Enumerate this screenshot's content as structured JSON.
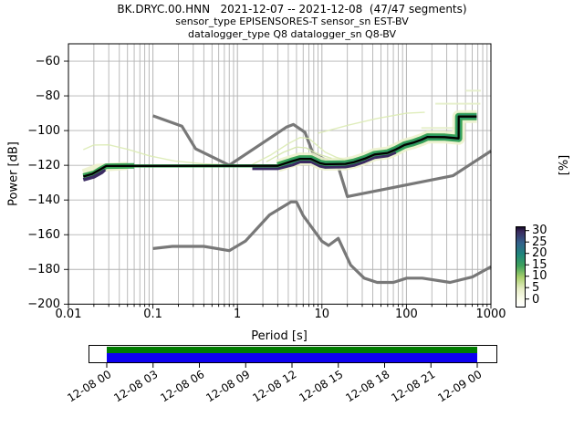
{
  "title": {
    "line1": "BK.DRYC.00.HNN   2021-12-07 -- 2021-12-08  (47/47 segments)",
    "line2": "sensor_type EPISENSORES-T sensor_sn EST-BV",
    "line3": "datalogger_type Q8 datalogger_sn Q8-BV"
  },
  "axes": {
    "xlabel": "Period [s]",
    "ylabel": "Power [dB]",
    "x_tick_labels": [
      "0.01",
      "0.1",
      "1",
      "10",
      "100",
      "1000"
    ],
    "y_tick_labels": [
      "−60",
      "−80",
      "−100",
      "−120",
      "−140",
      "−160",
      "−180",
      "−200"
    ]
  },
  "colorbar": {
    "label": "[%]",
    "tick_labels": [
      "30",
      "25",
      "20",
      "15",
      "10",
      "5",
      "0"
    ],
    "tick_values": [
      30,
      25,
      20,
      15,
      10,
      5,
      0
    ],
    "low_color": "#ffffff",
    "high_color": "#3b2a5e"
  },
  "timebar": {
    "coverage_color": "#007c00",
    "extent_color": "#0d00f0",
    "tick_labels": [
      "12-08 00",
      "12-08 03",
      "12-08 06",
      "12-08 09",
      "12-08 12",
      "12-08 15",
      "12-08 18",
      "12-08 21",
      "12-09 00"
    ]
  },
  "chart_data": {
    "type": "heatmap",
    "title": "BK.DRYC.00.HNN 2021-12-07 -- 2021-12-08 (47/47 segments)",
    "xlabel": "Period [s]",
    "ylabel": "Power [dB]",
    "xscale": "log",
    "xlim": [
      0.01,
      1000
    ],
    "ylim": [
      -200,
      -50
    ],
    "grid": true,
    "colorbar_label": "[%]",
    "colorbar_range": [
      0,
      30
    ],
    "series": [
      {
        "name": "noise-model-low-nlnm",
        "color": "#787878",
        "width": 3.2,
        "opacity": 1,
        "points": [
          [
            0.1,
            -168
          ],
          [
            0.17,
            -166.7
          ],
          [
            0.4,
            -166.7
          ],
          [
            0.8,
            -169.2
          ],
          [
            1.24,
            -163.7
          ],
          [
            2.4,
            -148.6
          ],
          [
            4.3,
            -141.1
          ],
          [
            5,
            -141.1
          ],
          [
            6,
            -149
          ],
          [
            10,
            -163.8
          ],
          [
            12,
            -166.2
          ],
          [
            15.6,
            -162.1
          ],
          [
            21.9,
            -177.5
          ],
          [
            31.6,
            -185
          ],
          [
            45,
            -187.5
          ],
          [
            70,
            -187.5
          ],
          [
            101,
            -185
          ],
          [
            154,
            -185
          ],
          [
            328,
            -187.5
          ],
          [
            600,
            -184.4
          ],
          [
            1000,
            -178.5
          ]
        ]
      },
      {
        "name": "noise-model-high-nhnm",
        "color": "#787878",
        "width": 3.2,
        "opacity": 1,
        "points": [
          [
            0.1,
            -91.5
          ],
          [
            0.22,
            -97.4
          ],
          [
            0.32,
            -110.5
          ],
          [
            0.8,
            -120
          ],
          [
            3.8,
            -98
          ],
          [
            4.6,
            -96.5
          ],
          [
            6.3,
            -101
          ],
          [
            7.9,
            -113.5
          ],
          [
            15.4,
            -120
          ],
          [
            20,
            -138
          ],
          [
            354.8,
            -126
          ],
          [
            1000,
            -111.8
          ]
        ]
      },
      {
        "name": "psd-band-light-start",
        "color": "#edf2cd",
        "width": 9,
        "opacity": 0.9,
        "points": [
          [
            0.015,
            -124.5
          ],
          [
            0.022,
            -121.5
          ],
          [
            0.05,
            -120.3
          ]
        ]
      },
      {
        "name": "psd-band-light",
        "color": "#edf2cd",
        "width": 14,
        "opacity": 0.9,
        "points": [
          [
            3,
            -120.3
          ],
          [
            4.3,
            -117.8
          ],
          [
            5.5,
            -116.3
          ],
          [
            7.4,
            -116.3
          ],
          [
            9.5,
            -118.8
          ],
          [
            11,
            -119.4
          ],
          [
            19,
            -119.2
          ],
          [
            24,
            -118.2
          ],
          [
            32,
            -116.2
          ],
          [
            42,
            -113.8
          ],
          [
            60,
            -112.9
          ],
          [
            75,
            -110.9
          ],
          [
            95,
            -108.3
          ],
          [
            120,
            -107
          ],
          [
            150,
            -105.3
          ],
          [
            178,
            -103.7
          ],
          [
            285,
            -103.8
          ],
          [
            415,
            -104.5
          ],
          [
            416,
            -91.9
          ],
          [
            680,
            -91.9
          ]
        ]
      },
      {
        "name": "psd-trace-short-period",
        "color": "#dcebb4",
        "width": 1.4,
        "opacity": 0.9,
        "points": [
          [
            0.015,
            -111
          ],
          [
            0.02,
            -108.3
          ],
          [
            0.03,
            -108.2
          ],
          [
            0.05,
            -110.8
          ],
          [
            0.09,
            -114.5
          ],
          [
            0.18,
            -117.5
          ],
          [
            0.4,
            -119.2
          ],
          [
            0.8,
            -119.8
          ]
        ]
      },
      {
        "name": "psd-trace-microseism-1",
        "color": "#dcebb4",
        "width": 1.4,
        "opacity": 0.9,
        "points": [
          [
            1.5,
            -119.5
          ],
          [
            2.5,
            -114
          ],
          [
            4,
            -107.5
          ],
          [
            5.5,
            -104
          ],
          [
            7,
            -104.5
          ],
          [
            8.5,
            -108
          ],
          [
            11,
            -112.5
          ],
          [
            15,
            -115.5
          ],
          [
            20,
            -117.5
          ]
        ]
      },
      {
        "name": "psd-trace-microseism-2",
        "color": "#d4e6ab",
        "width": 1.4,
        "opacity": 0.9,
        "points": [
          [
            2.2,
            -118
          ],
          [
            3.5,
            -112.5
          ],
          [
            5,
            -109.5
          ],
          [
            6.5,
            -110
          ],
          [
            9,
            -113.5
          ],
          [
            13,
            -116
          ]
        ]
      },
      {
        "name": "psd-trace-long-diagonal",
        "color": "#dcebb4",
        "width": 1.4,
        "opacity": 0.9,
        "points": [
          [
            9,
            -101.5
          ],
          [
            20,
            -97
          ],
          [
            45,
            -93
          ],
          [
            100,
            -90
          ],
          [
            165,
            -89.5
          ]
        ]
      },
      {
        "name": "psd-trace-dash-1",
        "color": "#e4eec8",
        "width": 2,
        "opacity": 0.9,
        "points": [
          [
            150,
            -98.5
          ],
          [
            390,
            -98.5
          ]
        ]
      },
      {
        "name": "psd-trace-dash-2",
        "color": "#e4eec8",
        "width": 2,
        "opacity": 0.9,
        "points": [
          [
            220,
            -84.5
          ],
          [
            750,
            -84.5
          ]
        ]
      },
      {
        "name": "psd-trace-dash-3",
        "color": "#e4eec8",
        "width": 2,
        "opacity": 0.9,
        "points": [
          [
            500,
            -77
          ],
          [
            760,
            -77
          ]
        ]
      },
      {
        "name": "psd-band-green-start",
        "color": "#3aa457",
        "width": 6,
        "opacity": 1,
        "points": [
          [
            0.015,
            -126.2
          ],
          [
            0.02,
            -124.6
          ],
          [
            0.024,
            -122.3
          ],
          [
            0.028,
            -120.5
          ],
          [
            0.06,
            -120.3
          ]
        ]
      },
      {
        "name": "psd-band-green",
        "color": "#3aa457",
        "width": 8,
        "opacity": 1,
        "points": [
          [
            3,
            -120.3
          ],
          [
            4.3,
            -117.8
          ],
          [
            5.5,
            -116.3
          ],
          [
            7.4,
            -116.3
          ],
          [
            9.5,
            -118.8
          ],
          [
            11,
            -119.4
          ],
          [
            19,
            -119.2
          ],
          [
            24,
            -118.2
          ],
          [
            32,
            -116.2
          ],
          [
            42,
            -113.8
          ],
          [
            60,
            -112.9
          ],
          [
            75,
            -110.9
          ],
          [
            95,
            -108.3
          ],
          [
            120,
            -107
          ],
          [
            150,
            -105.3
          ],
          [
            178,
            -103.7
          ],
          [
            285,
            -103.8
          ],
          [
            415,
            -104.5
          ],
          [
            416,
            -91.9
          ],
          [
            680,
            -91.9
          ]
        ]
      },
      {
        "name": "psd-band-teal",
        "color": "#1f8678",
        "width": 4.5,
        "opacity": 1,
        "points": [
          [
            3.2,
            -120.3
          ],
          [
            4.3,
            -117.8
          ],
          [
            5.5,
            -116.3
          ],
          [
            7.4,
            -116.3
          ],
          [
            9.5,
            -118.8
          ],
          [
            11,
            -119.4
          ],
          [
            19,
            -119.2
          ],
          [
            24,
            -118.2
          ],
          [
            32,
            -116.2
          ],
          [
            42,
            -113.8
          ],
          [
            60,
            -112.9
          ],
          [
            75,
            -110.9
          ],
          [
            95,
            -108.3
          ],
          [
            120,
            -107
          ],
          [
            150,
            -105.3
          ],
          [
            178,
            -103.7
          ],
          [
            285,
            -103.8
          ],
          [
            415,
            -104.5
          ],
          [
            416,
            -91.9
          ],
          [
            680,
            -91.9
          ]
        ]
      },
      {
        "name": "psd-band-purple-start",
        "color": "#3b2b62",
        "width": 4,
        "opacity": 1,
        "points": [
          [
            0.015,
            -128.3
          ],
          [
            0.02,
            -126.6
          ],
          [
            0.025,
            -124
          ],
          [
            0.027,
            -122.4
          ]
        ]
      },
      {
        "name": "psd-band-purple-under",
        "color": "#3b2b62",
        "width": 3,
        "opacity": 1,
        "points": [
          [
            1.5,
            -122
          ],
          [
            3,
            -122
          ],
          [
            4.5,
            -119.8
          ],
          [
            5.5,
            -118.1
          ],
          [
            7.5,
            -118.1
          ],
          [
            9.5,
            -120.5
          ],
          [
            11,
            -121.2
          ],
          [
            19,
            -121
          ],
          [
            24,
            -120.1
          ],
          [
            32,
            -118
          ],
          [
            42,
            -115.6
          ],
          [
            60,
            -114.6
          ],
          [
            75,
            -112.6
          ]
        ]
      },
      {
        "name": "psd-band-green-thin",
        "color": "#3aa457",
        "width": 3.5,
        "opacity": 1,
        "points": [
          [
            0.015,
            -126.5
          ],
          [
            0.019,
            -125
          ],
          [
            0.024,
            -122.3
          ],
          [
            0.028,
            -120.4
          ],
          [
            3,
            -120.3
          ],
          [
            4.3,
            -117.8
          ],
          [
            5.5,
            -116.3
          ],
          [
            7.4,
            -116.3
          ],
          [
            9.5,
            -118.8
          ],
          [
            11,
            -119.4
          ],
          [
            19,
            -119.2
          ],
          [
            24,
            -118.2
          ],
          [
            32,
            -116.2
          ],
          [
            42,
            -113.8
          ],
          [
            60,
            -112.9
          ],
          [
            75,
            -110.9
          ],
          [
            95,
            -108.3
          ],
          [
            120,
            -107
          ],
          [
            150,
            -105.3
          ],
          [
            178,
            -103.7
          ],
          [
            285,
            -103.8
          ],
          [
            415,
            -104.5
          ],
          [
            416,
            -91.9
          ],
          [
            680,
            -91.9
          ]
        ]
      },
      {
        "name": "psd-mode-line",
        "color": "#000000",
        "width": 2.3,
        "opacity": 1,
        "points": [
          [
            0.015,
            -126.5
          ],
          [
            0.019,
            -125
          ],
          [
            0.024,
            -122.3
          ],
          [
            0.028,
            -120.4
          ],
          [
            3,
            -120.3
          ],
          [
            4.3,
            -117.8
          ],
          [
            5.5,
            -116.3
          ],
          [
            7.4,
            -116.3
          ],
          [
            9.5,
            -118.8
          ],
          [
            11,
            -119.4
          ],
          [
            19,
            -119.2
          ],
          [
            24,
            -118.2
          ],
          [
            32,
            -116.2
          ],
          [
            42,
            -113.8
          ],
          [
            60,
            -112.9
          ],
          [
            75,
            -110.9
          ],
          [
            95,
            -108.3
          ],
          [
            120,
            -107
          ],
          [
            150,
            -105.3
          ],
          [
            178,
            -103.7
          ],
          [
            285,
            -103.8
          ],
          [
            415,
            -104.5
          ],
          [
            416,
            -91.9
          ],
          [
            680,
            -91.9
          ]
        ]
      }
    ]
  }
}
